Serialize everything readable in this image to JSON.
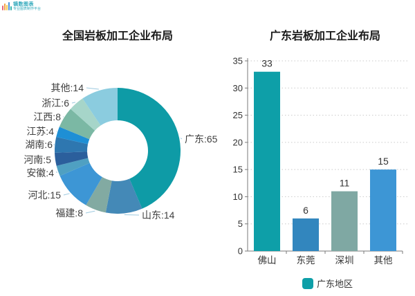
{
  "logo": {
    "line1": "镝数图表",
    "line2": "专业图表制作平台"
  },
  "chart_data": [
    {
      "type": "donut",
      "title": "全国岩板加工企业布局",
      "label_format": "name:value",
      "series": [
        {
          "label": "广东",
          "value": 65,
          "color": "#0E9BA6"
        },
        {
          "label": "山东",
          "value": 14,
          "color": "#4489B7"
        },
        {
          "label": "福建",
          "value": 8,
          "color": "#82AAA2"
        },
        {
          "label": "河北",
          "value": 15,
          "color": "#3D96D5"
        },
        {
          "label": "安徽",
          "value": 4,
          "color": "#4FA0C2"
        },
        {
          "label": "河南",
          "value": 5,
          "color": "#2B5F9C"
        },
        {
          "label": "湖南",
          "value": 6,
          "color": "#2E77B0"
        },
        {
          "label": "江苏",
          "value": 4,
          "color": "#1E8FD5"
        },
        {
          "label": "江西",
          "value": 8,
          "color": "#7BB8A4"
        },
        {
          "label": "浙江",
          "value": 6,
          "color": "#A6D5C9"
        },
        {
          "label": "其他",
          "value": 14,
          "color": "#8BCCDF"
        }
      ]
    },
    {
      "type": "bar",
      "title": "广东岩板加工企业布局",
      "categories": [
        "佛山",
        "东莞",
        "深圳",
        "其他"
      ],
      "values": [
        33,
        6,
        11,
        15
      ],
      "bar_colors": [
        "#0E9FA8",
        "#3286BE",
        "#7FA8A3",
        "#3D96D5"
      ],
      "ylim": [
        0,
        35
      ],
      "yticks": [
        0,
        5,
        10,
        15,
        20,
        25,
        30,
        35
      ],
      "grid": "horizontal-dotted",
      "legend": {
        "label": "广东地区",
        "color": "#0E9FA8",
        "position": "bottom"
      }
    }
  ]
}
